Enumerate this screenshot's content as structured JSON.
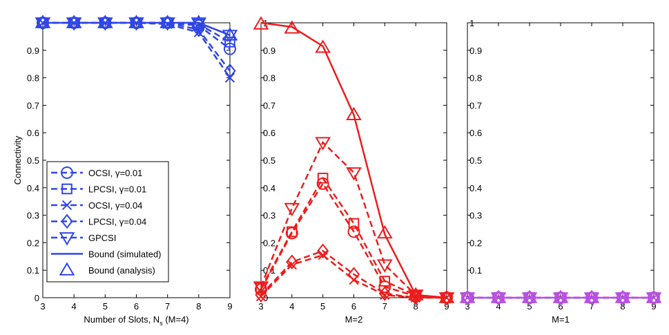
{
  "chart_data": [
    {
      "type": "line",
      "panel": "M=4",
      "color": "#2f45e8",
      "x": [
        3,
        4,
        5,
        6,
        7,
        8,
        9
      ],
      "xticks": [
        "3",
        "4",
        "5",
        "6",
        "7",
        "8",
        "9"
      ],
      "yticks": [
        "0",
        "0.1",
        "0.2",
        "0.3",
        "0.4",
        "0.5",
        "0.6",
        "0.7",
        "0.8",
        "0.9"
      ],
      "xlim": [
        3,
        9
      ],
      "ylim": [
        0,
        1
      ],
      "xlabel": "Number of Slots, N",
      "xlabel_sub": "s",
      "xlabel_suffix": " (M=4)",
      "ylabel": "Connectivity",
      "series": [
        {
          "name": "OCSI, γ=0.01",
          "marker": "circle",
          "dashed": true,
          "values": [
            1,
            1,
            1,
            1,
            1,
            0.99,
            0.905
          ]
        },
        {
          "name": "LPCSI, γ=0.01",
          "marker": "square",
          "dashed": true,
          "values": [
            1,
            1,
            1,
            1,
            1,
            0.995,
            0.93
          ]
        },
        {
          "name": "OCSI, γ=0.04",
          "marker": "x",
          "dashed": true,
          "values": [
            1,
            1,
            1,
            1,
            0.995,
            0.965,
            0.8
          ]
        },
        {
          "name": "LPCSI, γ=0.04",
          "marker": "diamond",
          "dashed": true,
          "values": [
            1,
            1,
            1,
            1,
            1,
            0.975,
            0.825
          ]
        },
        {
          "name": "GPCSI",
          "marker": "tri-down",
          "dashed": true,
          "values": [
            1,
            1,
            1,
            1,
            1,
            1,
            0.955
          ]
        },
        {
          "name": "Bound (simulated)",
          "marker": "none",
          "dashed": false,
          "values": [
            1,
            1,
            1,
            1,
            1,
            1,
            0.955
          ]
        },
        {
          "name": "Bound (analysis)",
          "marker": "tri-up",
          "dashed": false,
          "line": false,
          "values": [
            1,
            1,
            1,
            1,
            1,
            1,
            0.955
          ]
        }
      ],
      "legend": {
        "position": "bottom-left",
        "entries": [
          "OCSI, γ=0.01",
          "LPCSI, γ=0.01",
          "OCSI, γ=0.04",
          "LPCSI, γ=0.04",
          "GPCSI",
          "Bound (simulated)",
          "Bound (analysis)"
        ]
      }
    },
    {
      "type": "line",
      "panel": "M=2",
      "color": "#ee1c1c",
      "x": [
        3,
        4,
        5,
        6,
        7,
        8,
        9
      ],
      "xticks": [
        "3",
        "4",
        "5",
        "6",
        "7",
        "8",
        "9"
      ],
      "yticks": [
        "0",
        "0.1",
        "0.2",
        "0.3",
        "0.4",
        "0.5",
        "0.6",
        "0.7",
        "0.8",
        "0.9",
        "1"
      ],
      "xlim": [
        3,
        9
      ],
      "ylim": [
        0,
        1
      ],
      "xlabel": "M=2",
      "series": [
        {
          "name": "OCSI, γ=0.01",
          "marker": "circle",
          "dashed": true,
          "values": [
            0.03,
            0.235,
            0.415,
            0.24,
            0.04,
            0.005,
            0
          ]
        },
        {
          "name": "LPCSI, γ=0.01",
          "marker": "square",
          "dashed": true,
          "values": [
            0.035,
            0.24,
            0.435,
            0.27,
            0.06,
            0.008,
            0
          ]
        },
        {
          "name": "OCSI, γ=0.04",
          "marker": "x",
          "dashed": true,
          "values": [
            0.005,
            0.12,
            0.155,
            0.065,
            0.01,
            0,
            0
          ]
        },
        {
          "name": "LPCSI, γ=0.04",
          "marker": "diamond",
          "dashed": true,
          "values": [
            0.01,
            0.13,
            0.17,
            0.085,
            0.015,
            0,
            0
          ]
        },
        {
          "name": "GPCSI",
          "marker": "tri-down",
          "dashed": true,
          "values": [
            0.04,
            0.325,
            0.565,
            0.455,
            0.12,
            0.01,
            0
          ]
        },
        {
          "name": "Bound (simulated)",
          "marker": "none",
          "dashed": false,
          "values": [
            1,
            0.985,
            0.915,
            0.665,
            0.23,
            0.01,
            0
          ]
        },
        {
          "name": "Bound (analysis)",
          "marker": "tri-up",
          "dashed": false,
          "line": false,
          "values": [
            0.995,
            0.98,
            0.91,
            0.665,
            0.235,
            0.01,
            0
          ]
        }
      ]
    },
    {
      "type": "line",
      "panel": "M=1",
      "color": "#b94ee0",
      "x": [
        3,
        4,
        5,
        6,
        7,
        8,
        9
      ],
      "xticks": [
        "3",
        "4",
        "5",
        "6",
        "7",
        "8",
        "9"
      ],
      "yticks": [
        "0",
        "0.1",
        "0.2",
        "0.3",
        "0.4",
        "0.5",
        "0.6",
        "0.7",
        "0.8",
        "0.9",
        "1"
      ],
      "xlim": [
        3,
        9
      ],
      "ylim": [
        0,
        1
      ],
      "xlabel": "M=1",
      "series": [
        {
          "name": "OCSI, γ=0.01",
          "marker": "circle",
          "dashed": true,
          "values": [
            0,
            0,
            0,
            0,
            0,
            0,
            0
          ]
        },
        {
          "name": "LPCSI, γ=0.01",
          "marker": "square",
          "dashed": true,
          "values": [
            0,
            0,
            0,
            0,
            0,
            0,
            0
          ]
        },
        {
          "name": "OCSI, γ=0.04",
          "marker": "x",
          "dashed": true,
          "values": [
            0,
            0,
            0,
            0,
            0,
            0,
            0
          ]
        },
        {
          "name": "LPCSI, γ=0.04",
          "marker": "diamond",
          "dashed": true,
          "values": [
            0,
            0,
            0,
            0,
            0,
            0,
            0
          ]
        },
        {
          "name": "GPCSI",
          "marker": "tri-down",
          "dashed": true,
          "values": [
            0,
            0,
            0,
            0,
            0,
            0,
            0
          ]
        },
        {
          "name": "Bound (simulated)",
          "marker": "none",
          "dashed": false,
          "values": [
            0,
            0,
            0,
            0,
            0,
            0,
            0
          ]
        },
        {
          "name": "Bound (analysis)",
          "marker": "tri-up",
          "dashed": false,
          "line": false,
          "values": [
            0,
            0,
            0,
            0,
            0,
            0,
            0
          ]
        }
      ]
    }
  ]
}
